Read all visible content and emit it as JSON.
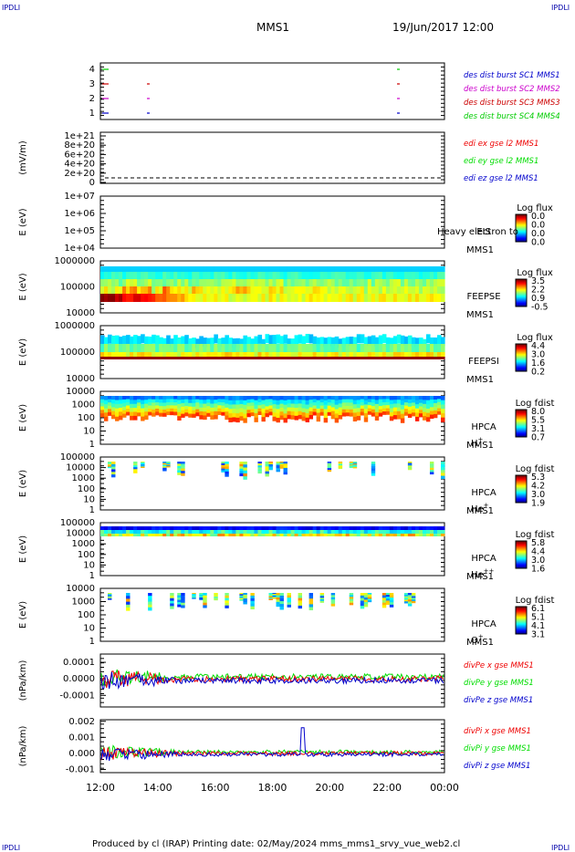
{
  "page": {
    "corner_label": "IPDLI",
    "mission": "MMS1",
    "datetime": "19/Jun/2017 12:00",
    "footer": "Produced by cl (IRAP)   Printing date: 02/May/2024   mms_mms1_srvy_vue_web2.cl"
  },
  "colors": {
    "mms1": "#0000cc",
    "mms2": "#cc00cc",
    "mms3": "#cc0000",
    "mms4": "#00cc00",
    "x": "#ee0000",
    "y": "#00dd00",
    "z": "#0000cc"
  },
  "chart_data": [
    {
      "type": "line",
      "panel": "availability",
      "yticks": [
        "4",
        "3",
        "2",
        "1"
      ],
      "legend": [
        "des dist burst SC1 MMS1",
        "des dist burst SC2 MMS2",
        "des dist burst SC3 MMS3",
        "des dist burst SC4 MMS4"
      ],
      "series": [
        {
          "name": "des dist burst SC1 MMS1",
          "level": 1,
          "x": [
            "12:00",
            "13:30",
            "22:30"
          ]
        },
        {
          "name": "des dist burst SC2 MMS2",
          "level": 2,
          "x": [
            "12:00",
            "13:30",
            "22:30"
          ]
        },
        {
          "name": "des dist burst SC3 MMS3",
          "level": 3,
          "x": [
            "12:00",
            "13:30",
            "22:30"
          ]
        },
        {
          "name": "des dist burst SC4 MMS4",
          "level": 4,
          "x": [
            "12:00",
            "22:30"
          ]
        }
      ]
    },
    {
      "type": "line",
      "panel": "edi",
      "ylabel": "(mV/m)",
      "yticks": [
        "1e+21",
        "8e+20",
        "6e+20",
        "4e+20",
        "2e+20",
        "0"
      ],
      "legend": [
        "edi ex gse l2 MMS1",
        "edi ey gse l2 MMS1",
        "edi ez gse l2 MMS1"
      ],
      "series": [
        {
          "name": "edi ex gse l2 MMS1",
          "values": [
            0,
            0
          ]
        }
      ]
    },
    {
      "type": "heatmap",
      "panel": "EIS",
      "ylabel": "E (eV)",
      "yticks": [
        "1e+07",
        "1e+06",
        "1e+05",
        "1e+04"
      ],
      "labels": [
        "EIS",
        "MMS1"
      ],
      "overlay": "Heavy electron to",
      "colorbar": {
        "title": "Log flux",
        "ticks": [
          "0.0",
          "0.0",
          "0.0",
          "0.0"
        ]
      }
    },
    {
      "type": "heatmap",
      "panel": "FEEPS-E",
      "ylabel": "E (eV)",
      "yticks": [
        "1000000",
        "100000",
        "10000"
      ],
      "labels": [
        "FEEPSE",
        "MMS1"
      ],
      "colorbar": {
        "title": "Log flux",
        "ticks": [
          "3.5",
          "2.2",
          "0.9",
          "-0.5"
        ]
      }
    },
    {
      "type": "heatmap",
      "panel": "FEEPS-I",
      "ylabel": "E (eV)",
      "yticks": [
        "1000000",
        "100000",
        "10000"
      ],
      "labels": [
        "FEEPSI",
        "MMS1"
      ],
      "colorbar": {
        "title": "Log flux",
        "ticks": [
          "4.4",
          "3.0",
          "1.6",
          "0.2"
        ]
      }
    },
    {
      "type": "heatmap",
      "panel": "HPCA H+",
      "ylabel": "E (eV)",
      "yticks": [
        "10000",
        "1000",
        "100",
        "10",
        "1"
      ],
      "labels": [
        "HPCA",
        "MMS1"
      ],
      "species": "H",
      "charge": "+",
      "colorbar": {
        "title": "Log fdist",
        "ticks": [
          "8.0",
          "5.5",
          "3.1",
          "0.7"
        ]
      }
    },
    {
      "type": "heatmap",
      "panel": "HPCA He+",
      "ylabel": "E (eV)",
      "yticks": [
        "100000",
        "10000",
        "1000",
        "100",
        "10",
        "1"
      ],
      "labels": [
        "HPCA",
        "MMS1"
      ],
      "species": "He",
      "charge": "+",
      "colorbar": {
        "title": "Log fdist",
        "ticks": [
          "5.3",
          "4.2",
          "3.0",
          "1.9"
        ]
      }
    },
    {
      "type": "heatmap",
      "panel": "HPCA He++",
      "ylabel": "E (eV)",
      "yticks": [
        "100000",
        "10000",
        "1000",
        "100",
        "10",
        "1"
      ],
      "labels": [
        "HPCA",
        "MMS1"
      ],
      "species": "He",
      "charge": "++",
      "colorbar": {
        "title": "Log fdist",
        "ticks": [
          "5.8",
          "4.4",
          "3.0",
          "1.6"
        ]
      }
    },
    {
      "type": "heatmap",
      "panel": "HPCA O+",
      "ylabel": "E (eV)",
      "yticks": [
        "10000",
        "1000",
        "100",
        "10",
        "1"
      ],
      "labels": [
        "HPCA",
        "MMS1"
      ],
      "species": "O",
      "charge": "+",
      "colorbar": {
        "title": "Log fdist",
        "ticks": [
          "6.1",
          "5.1",
          "4.1",
          "3.1"
        ]
      }
    },
    {
      "type": "line",
      "panel": "divPe",
      "ylabel": "(nPa/km)",
      "yticks": [
        "0.0001",
        "0.0000",
        "-0.0001"
      ],
      "ylim": [
        -0.00017,
        0.00015
      ],
      "legend": [
        "divPe x gse MMS1",
        "divPe y gse MMS1",
        "divPe z gse MMS1"
      ]
    },
    {
      "type": "line",
      "panel": "divPi",
      "ylabel": "(nPa/km)",
      "yticks": [
        "0.002",
        "0.001",
        "0.000",
        "-0.001"
      ],
      "ylim": [
        -0.0012,
        0.0021
      ],
      "legend": [
        "divPi x gse MMS1",
        "divPi y gse MMS1",
        "divPi z gse MMS1"
      ]
    }
  ],
  "xaxis": {
    "ticks": [
      "12:00",
      "14:00",
      "16:00",
      "18:00",
      "20:00",
      "22:00",
      "00:00"
    ]
  }
}
